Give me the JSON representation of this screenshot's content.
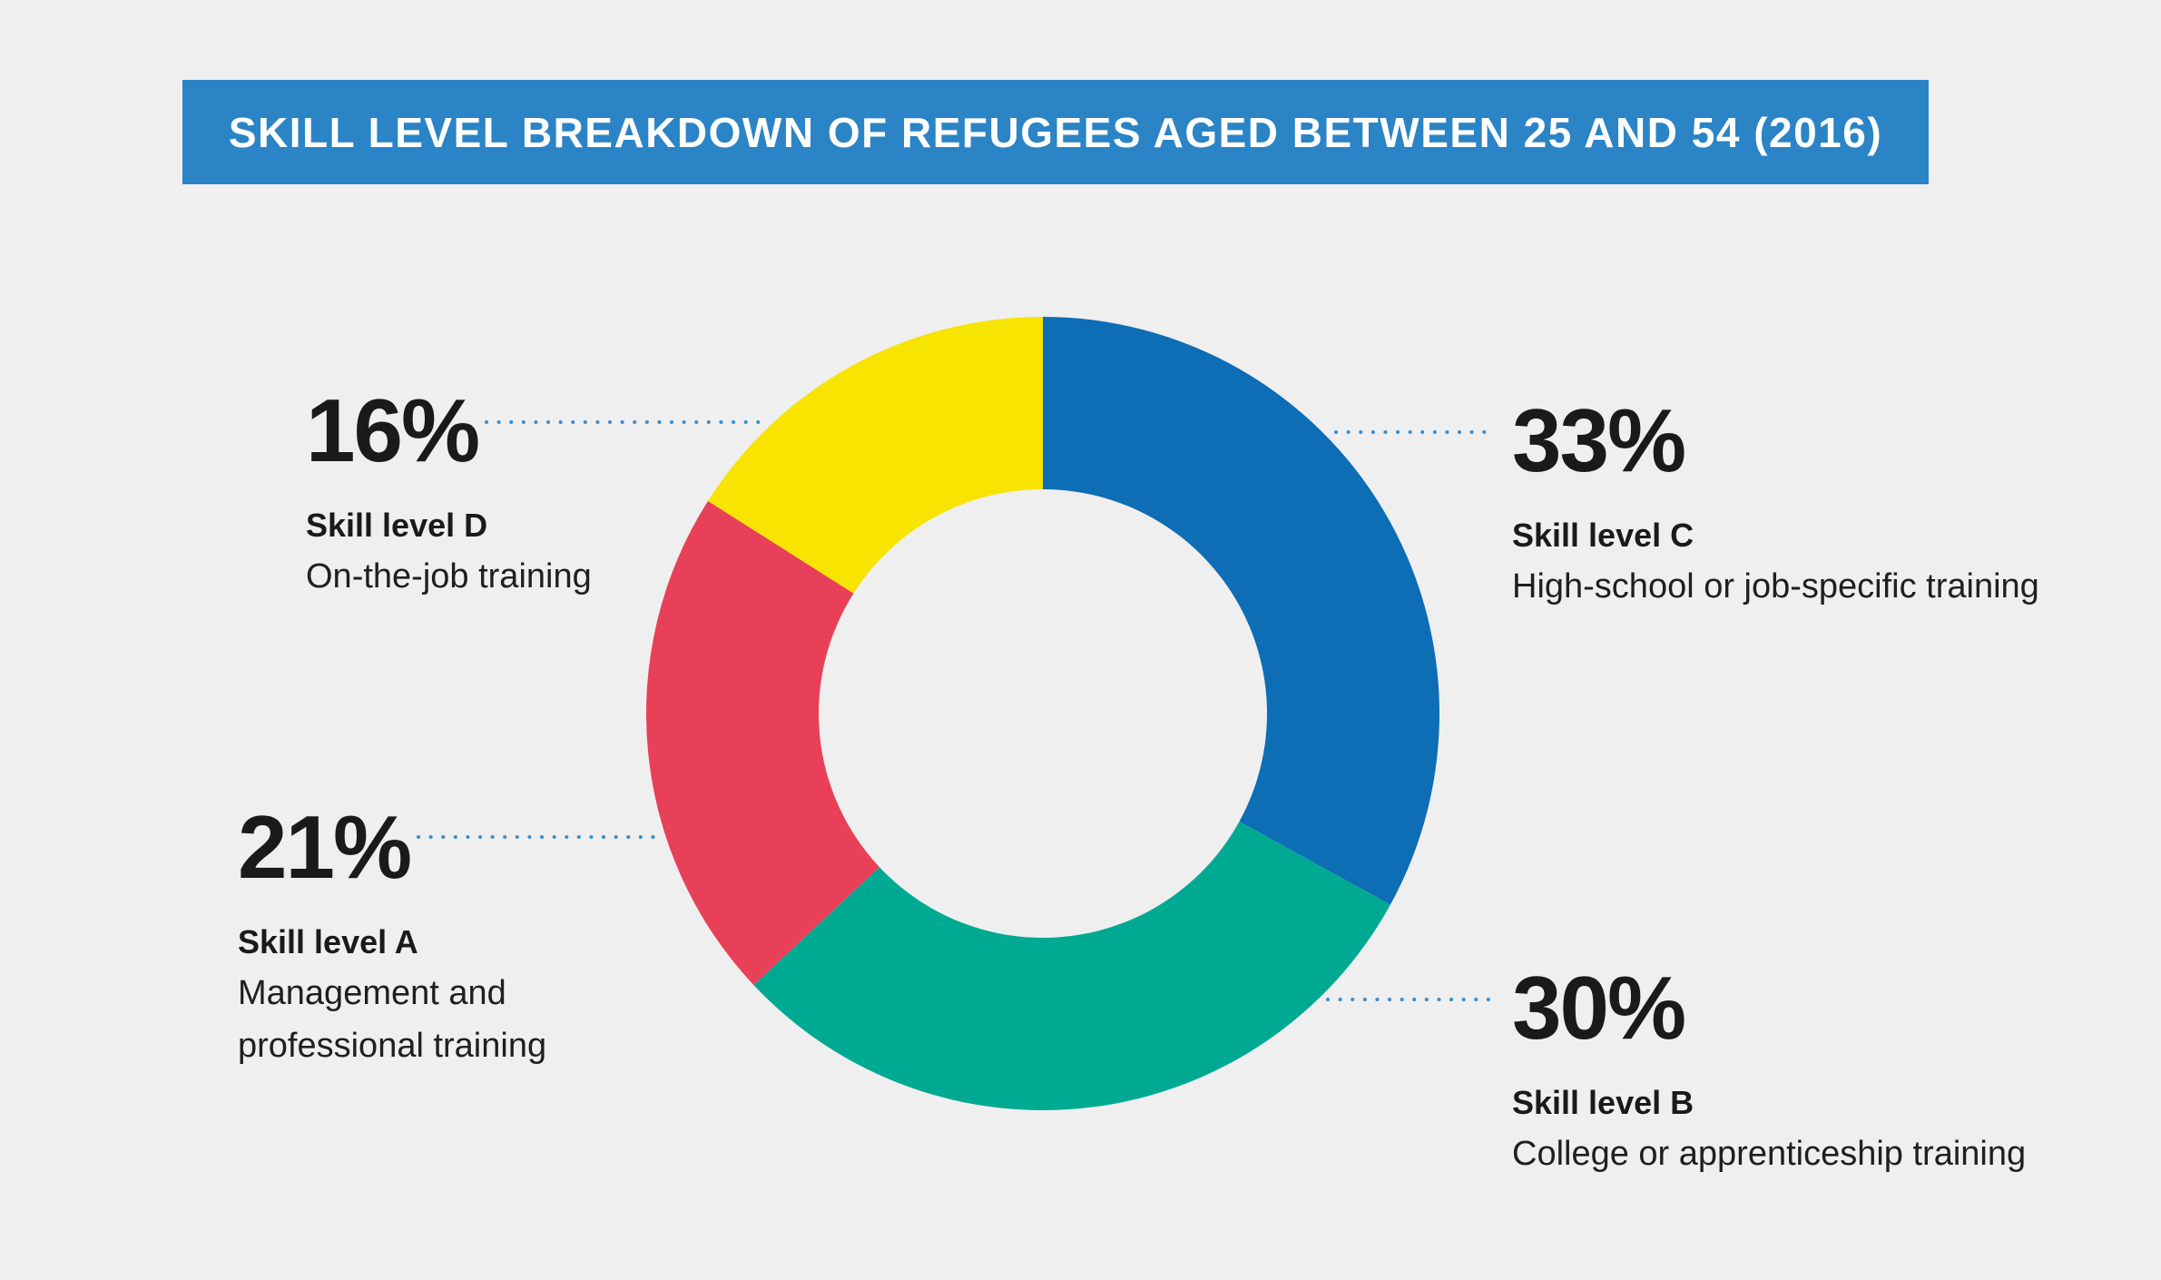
{
  "chart_data": {
    "type": "pie",
    "title": "SKILL LEVEL BREAKDOWN OF REFUGEES AGED BETWEEN 25 AND 54 (2016)",
    "hole": true,
    "slices": [
      {
        "label": "Skill level C",
        "description": "High-school or job-specific training",
        "value": 33,
        "display": "33%",
        "color": "#0d6db5"
      },
      {
        "label": "Skill level B",
        "description": "College or apprenticeship training",
        "value": 30,
        "display": "30%",
        "color": "#00aa92"
      },
      {
        "label": "Skill level A",
        "description_lines": [
          "Management and",
          "professional training"
        ],
        "value": 21,
        "display": "21%",
        "color": "#e84058"
      },
      {
        "label": "Skill level D",
        "description": "On-the-job training",
        "value": 16,
        "display": "16%",
        "color": "#f7e400"
      }
    ],
    "leader_color": "#3a8fd0"
  }
}
